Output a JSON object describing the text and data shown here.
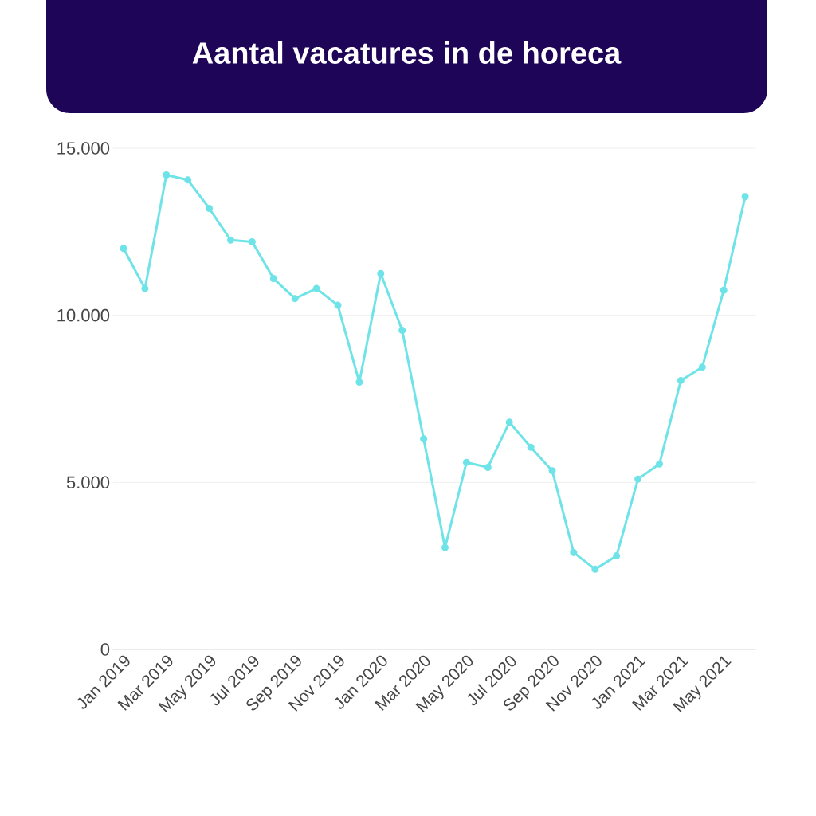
{
  "chart_data": {
    "type": "line",
    "title": "Aantal vacatures in de horeca",
    "categories": [
      "Jan 2019",
      null,
      "Mar 2019",
      null,
      "May 2019",
      null,
      "Jul 2019",
      null,
      "Sep 2019",
      null,
      "Nov 2019",
      null,
      "Jan 2020",
      null,
      "Mar 2020",
      null,
      "May 2020",
      null,
      "Jul 2020",
      null,
      "Sep 2020",
      null,
      "Nov 2020",
      null,
      "Jan 2021",
      null,
      "Mar 2021",
      null,
      "May 2021",
      null
    ],
    "series": [
      {
        "color": "#6ee3e8",
        "values": [
          12000,
          10800,
          14200,
          14050,
          13200,
          12250,
          12200,
          11100,
          10500,
          10800,
          10300,
          8000,
          11250,
          9550,
          6300,
          3050,
          5600,
          5450,
          6800,
          6050,
          5350,
          2900,
          2400,
          2800,
          5100,
          5550,
          8050,
          8450,
          10750,
          13550
        ]
      }
    ],
    "ylim": [
      0,
      15000
    ],
    "yticks": [
      {
        "value": 0,
        "label": "0"
      },
      {
        "value": 5000,
        "label": "5.000"
      },
      {
        "value": 10000,
        "label": "10.000"
      },
      {
        "value": 15000,
        "label": "15.000"
      }
    ],
    "grid": "y",
    "marker": "circle",
    "line_style": "solid"
  }
}
